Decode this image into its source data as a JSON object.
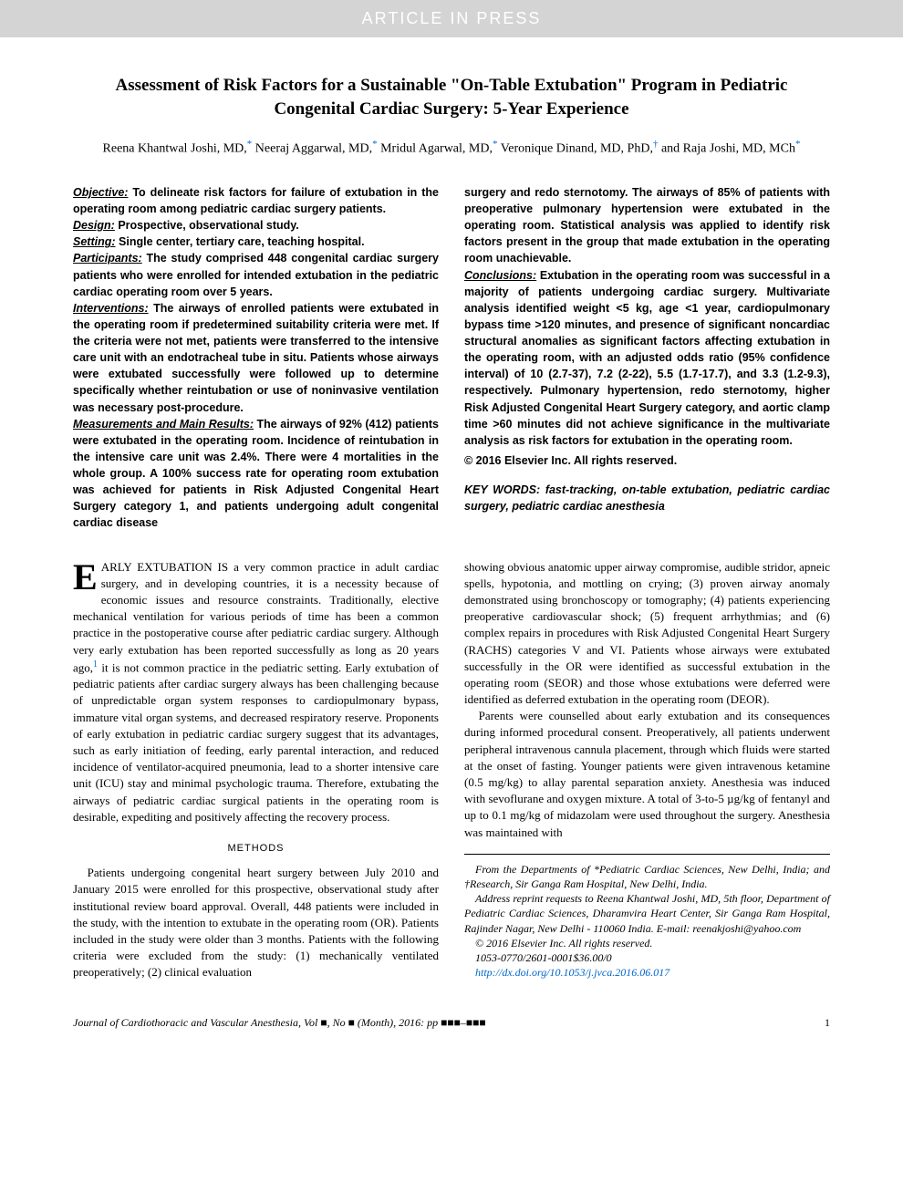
{
  "banner": "ARTICLE IN PRESS",
  "title": "Assessment of Risk Factors for a Sustainable \"On-Table Extubation\" Program in Pediatric Congenital Cardiac Surgery: 5-Year Experience",
  "authors": [
    {
      "name": "Reena Khantwal Joshi, MD,",
      "marker": "*"
    },
    {
      "name": " Neeraj Aggarwal, MD,",
      "marker": "*"
    },
    {
      "name": " Mridul Agarwal, MD,",
      "marker": "*"
    },
    {
      "name": " Veronique Dinand, MD, PhD,",
      "marker": "†"
    },
    {
      "name": " and Raja Joshi, MD, MCh",
      "marker": "*"
    }
  ],
  "abstract": {
    "left": {
      "objective": "To delineate risk factors for failure of extubation in the operating room among pediatric cardiac surgery patients.",
      "design": "Prospective, observational study.",
      "setting": "Single center, tertiary care, teaching hospital.",
      "participants": "The study comprised 448 congenital cardiac surgery patients who were enrolled for intended extubation in the pediatric cardiac operating room over 5 years.",
      "interventions": "The airways of enrolled patients were extubated in the operating room if predetermined suitability criteria were met. If the criteria were not met, patients were transferred to the intensive care unit with an endotracheal tube in situ. Patients whose airways were extubated successfully were followed up to determine specifically whether reintubation or use of noninvasive ventilation was necessary post-procedure.",
      "measurements": "The airways of 92% (412) patients were extubated in the operating room. Incidence of reintubation in the intensive care unit was 2.4%. There were 4 mortalities in the whole group. A 100% success rate for operating room extubation was achieved for patients in Risk Adjusted Congenital Heart Surgery category 1, and patients undergoing adult congenital cardiac disease"
    },
    "right": {
      "measurements_cont": "surgery and redo sternotomy. The airways of 85% of patients with preoperative pulmonary hypertension were extubated in the operating room. Statistical analysis was applied to identify risk factors present in the group that made extubation in the operating room unachievable.",
      "conclusions": "Extubation in the operating room was successful in a majority of patients undergoing cardiac surgery. Multivariate analysis identified weight <5 kg, age <1 year, cardiopulmonary bypass time >120 minutes, and presence of significant noncardiac structural anomalies as significant factors affecting extubation in the operating room, with an adjusted odds ratio (95% confidence interval) of 10 (2.7-37), 7.2 (2-22), 5.5 (1.7-17.7), and 3.3 (1.2-9.3), respectively. Pulmonary hypertension, redo sternotomy, higher Risk Adjusted Congenital Heart Surgery category, and aortic clamp time >60 minutes did not achieve significance in the multivariate analysis as risk factors for extubation in the operating room.",
      "copyright": "© 2016 Elsevier Inc. All rights reserved.",
      "keywords": "KEY WORDS: fast-tracking, on-table extubation, pediatric cardiac surgery, pediatric cardiac anesthesia"
    }
  },
  "body": {
    "left": {
      "intro_first": "ARLY EXTUBATION IS a very common practice in adult cardiac surgery, and in developing countries, it is a necessity because of economic issues and resource constraints. Traditionally, elective mechanical ventilation for various periods of time has been a common practice in the postoperative course after pediatric cardiac surgery. Although very early extubation has been reported successfully as long as 20 years ago,",
      "intro_after_ref": " it is not common practice in the pediatric setting. Early extubation of pediatric patients after cardiac surgery always has been challenging because of unpredictable organ system responses to cardiopulmonary bypass, immature vital organ systems, and decreased respiratory reserve. Proponents of early extubation in pediatric cardiac surgery suggest that its advantages, such as early initiation of feeding, early parental interaction, and reduced incidence of ventilator-acquired pneumonia, lead to a shorter intensive care unit (ICU) stay and minimal psychologic trauma. Therefore, extubating the airways of pediatric cardiac surgical patients in the operating room is desirable, expediting and positively affecting the recovery process.",
      "methods_head": "METHODS",
      "methods_p1": "Patients undergoing congenital heart surgery between July 2010 and January 2015 were enrolled for this prospective, observational study after institutional review board approval. Overall, 448 patients were included in the study, with the intention to extubate in the operating room (OR). Patients included in the study were older than 3 months. Patients with the following criteria were excluded from the study: (1) mechanically ventilated preoperatively; (2) clinical evaluation"
    },
    "right": {
      "p1": "showing obvious anatomic upper airway compromise, audible stridor, apneic spells, hypotonia, and mottling on crying; (3) proven airway anomaly demonstrated using bronchoscopy or tomography; (4) patients experiencing preoperative cardiovascular shock; (5) frequent arrhythmias; and (6) complex repairs in procedures with Risk Adjusted Congenital Heart Surgery (RACHS) categories V and VI. Patients whose airways were extubated successfully in the OR were identified as successful extubation in the operating room (SEOR) and those whose extubations were deferred were identified as deferred extubation in the operating room (DEOR).",
      "p2": "Parents were counselled about early extubation and its consequences during informed procedural consent. Preoperatively, all patients underwent peripheral intravenous cannula placement, through which fluids were started at the onset of fasting. Younger patients were given intravenous ketamine (0.5 mg/kg) to allay parental separation anxiety. Anesthesia was induced with sevoflurane and oxygen mixture. A total of 3-to-5 µg/kg of fentanyl and up to 0.1 mg/kg of midazolam were used throughout the surgery. Anesthesia was maintained with"
    },
    "affil": {
      "l1": "From the Departments of *Pediatric Cardiac Sciences, New Delhi, India; and †Research, Sir Ganga Ram Hospital, New Delhi, India.",
      "l2": "Address reprint requests to Reena Khantwal Joshi, MD, 5th floor, Department of Pediatric Cardiac Sciences, Dharamvira Heart Center, Sir Ganga Ram Hospital, Rajinder Nagar, New Delhi - 110060 India. E-mail: reenakjoshi@yahoo.com",
      "l3": "© 2016 Elsevier Inc. All rights reserved.",
      "l4": "1053-0770/2601-0001$36.00/0",
      "doi": "http://dx.doi.org/10.1053/j.jvca.2016.06.017"
    }
  },
  "footer": {
    "journal": "Journal of Cardiothoracic and Vascular Anesthesia, Vol ■, No ■ (Month), 2016: pp ■■■–■■■",
    "page": "1"
  },
  "ref_marker": "1",
  "dropcap": "E",
  "colors": {
    "banner_bg": "#d4d4d4",
    "banner_fg": "#ffffff",
    "link": "#0066cc",
    "text": "#000000"
  }
}
